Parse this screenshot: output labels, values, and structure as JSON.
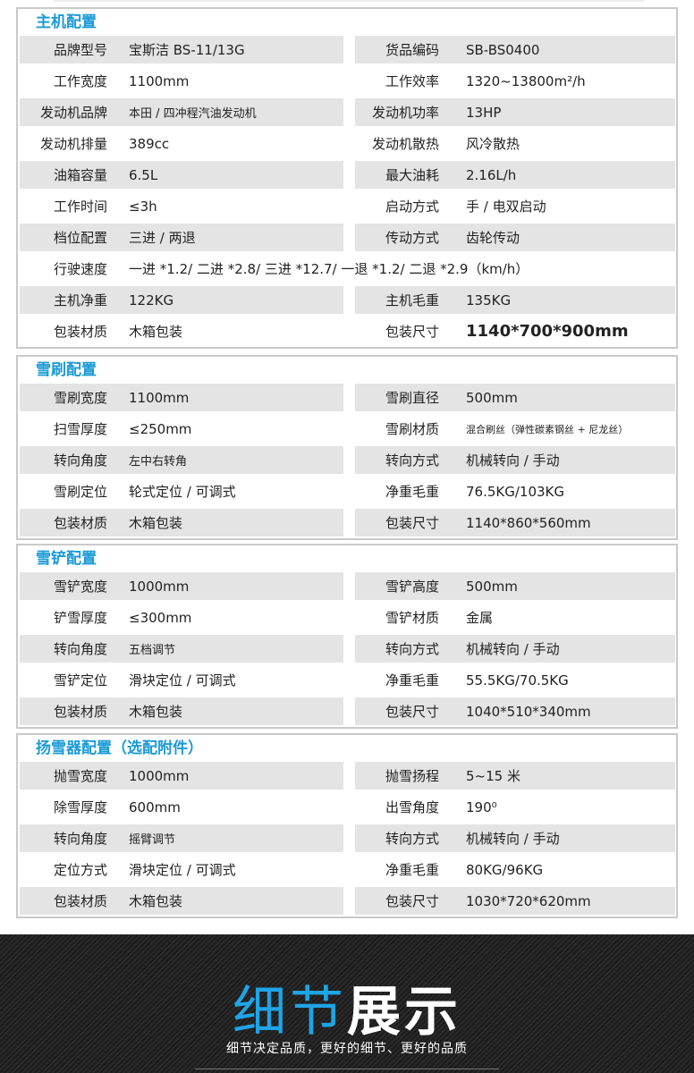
{
  "sections": [
    {
      "title": "主机配置",
      "rows": [
        {
          "l": "品牌型号",
          "v": "宝斯洁 BS-11/13G",
          "rl": "货品编码",
          "rv": "SB-BS0400"
        },
        {
          "l": "工作宽度",
          "v": "1100mm",
          "rl": "工作效率",
          "rv": "1320~13800m²/h"
        },
        {
          "l": "发动机品牌",
          "v": "本田 / 四冲程汽油发动机",
          "rl": "发动机功率",
          "rv": "13HP"
        },
        {
          "l": "发动机排量",
          "v": "389cc",
          "rl": "发动机散热",
          "rv": "风冷散热"
        },
        {
          "l": "油箱容量",
          "v": "6.5L",
          "rl": "最大油耗",
          "rv": "2.16L/h"
        },
        {
          "l": "工作时间",
          "v": "≤3h",
          "rl": "启动方式",
          "rv": "手 / 电双启动"
        },
        {
          "l": "档位配置",
          "v": "三进 / 两退",
          "rl": "传动方式",
          "rv": "齿轮传动"
        },
        {
          "l": "行驶速度",
          "v": "一进 *1.2/ 二进 *2.8/ 三进 *12.7/ 一退 *1.2/ 二退 *2.9（km/h）",
          "full": true
        },
        {
          "l": "主机净重",
          "v": "122KG",
          "rl": "主机毛重",
          "rv": "135KG"
        },
        {
          "l": "包装材质",
          "v": "木箱包装",
          "rl": "包装尺寸",
          "rv": "1140*700*900mm"
        }
      ]
    },
    {
      "title": "雪刷配置",
      "rows": [
        {
          "l": "雪刷宽度",
          "v": "1100mm",
          "rl": "雪刷直径",
          "rv": "500mm"
        },
        {
          "l": "扫雪厚度",
          "v": "≤250mm",
          "rl": "雪刷材质",
          "rv": "混合刷丝（弹性碳素钢丝 + 尼龙丝）"
        },
        {
          "l": "转向角度",
          "v": "左中右转角",
          "rl": "转向方式",
          "rv": "机械转向 / 手动"
        },
        {
          "l": "雪刷定位",
          "v": "轮式定位 / 可调式",
          "rl": "净重毛重",
          "rv": "76.5KG/103KG"
        },
        {
          "l": "包装材质",
          "v": "木箱包装",
          "rl": "包装尺寸",
          "rv": "1140*860*560mm"
        }
      ]
    },
    {
      "title": "雪铲配置",
      "rows": [
        {
          "l": "雪铲宽度",
          "v": "1000mm",
          "rl": "雪铲高度",
          "rv": "500mm"
        },
        {
          "l": "铲雪厚度",
          "v": "≤300mm",
          "rl": "雪铲材质",
          "rv": "金属"
        },
        {
          "l": "转向角度",
          "v": "五档调节",
          "rl": "转向方式",
          "rv": "机械转向 / 手动"
        },
        {
          "l": "雪铲定位",
          "v": "滑块定位 / 可调式",
          "rl": "净重毛重",
          "rv": "55.5KG/70.5KG"
        },
        {
          "l": "包装材质",
          "v": "木箱包装",
          "rl": "包装尺寸",
          "rv": "1040*510*340mm"
        }
      ]
    },
    {
      "title": "扬雪器配置（选配附件）",
      "rows": [
        {
          "l": "抛雪宽度",
          "v": "1000mm",
          "rl": "抛雪扬程",
          "rv": "5~15 米"
        },
        {
          "l": "除雪厚度",
          "v": "600mm",
          "rl": "出雪角度",
          "rv": "190⁰"
        },
        {
          "l": "转向角度",
          "v": "摇臂调节",
          "rl": "转向方式",
          "rv": "机械转向 / 手动"
        },
        {
          "l": "定位方式",
          "v": "滑块定位 / 可调式",
          "rl": "净重毛重",
          "rv": "80KG/96KG"
        },
        {
          "l": "包装材质",
          "v": "木箱包装",
          "rl": "包装尺寸",
          "rv": "1030*720*620mm"
        }
      ]
    }
  ],
  "banner": {
    "title_blue": "细节",
    "title_white": "展示",
    "subtitle": "细节决定品质，更好的细节、更好的品质"
  },
  "colors": {
    "accent": "#1a9ad6",
    "row_shade": "#e4e4e4",
    "banner_bg": "#222222"
  }
}
